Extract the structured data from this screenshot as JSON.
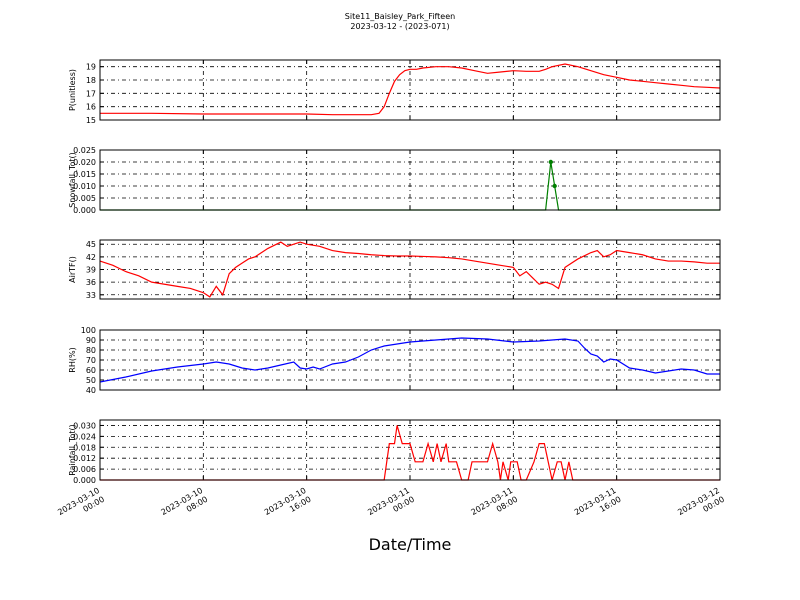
{
  "title": [
    "Site11_Baisley_Park_Fifteen",
    "2023-03-12 - (2023-071)"
  ],
  "xlabel": "Date/Time",
  "xtick_labels": [
    [
      "2023-03-10",
      "00:00"
    ],
    [
      "2023-03-10",
      "08:00"
    ],
    [
      "2023-03-10",
      "16:00"
    ],
    [
      "2023-03-11",
      "00:00"
    ],
    [
      "2023-03-11",
      "08:00"
    ],
    [
      "2023-03-11",
      "16:00"
    ],
    [
      "2023-03-12",
      "00:00"
    ]
  ],
  "chart_data": [
    {
      "type": "line",
      "ylabel": "P(unitless)",
      "color": "#ff0000",
      "xlim": [
        0,
        48
      ],
      "ylim": [
        15,
        19.5
      ],
      "yticks": [
        15,
        16,
        17,
        18,
        19
      ],
      "x": [
        0,
        4,
        8,
        12,
        16,
        18,
        20,
        21,
        21.6,
        22,
        22.4,
        22.8,
        23.2,
        23.6,
        24,
        24.5,
        25,
        26,
        27,
        28,
        29,
        30,
        31,
        32,
        33,
        34,
        34.5,
        35,
        36,
        37,
        38,
        39,
        40,
        41,
        42,
        43,
        44,
        45,
        46,
        47,
        48
      ],
      "y": [
        15.5,
        15.5,
        15.45,
        15.45,
        15.45,
        15.4,
        15.4,
        15.4,
        15.5,
        16.0,
        17.0,
        17.9,
        18.4,
        18.7,
        18.8,
        18.8,
        18.9,
        19.0,
        19.0,
        18.9,
        18.7,
        18.5,
        18.6,
        18.7,
        18.65,
        18.65,
        18.8,
        19.0,
        19.2,
        19.0,
        18.7,
        18.4,
        18.2,
        18.0,
        17.9,
        17.8,
        17.7,
        17.6,
        17.5,
        17.45,
        17.4
      ]
    },
    {
      "type": "line",
      "ylabel": "Snowfall_Tot()",
      "color": "#008000",
      "xlim": [
        0,
        48
      ],
      "ylim": [
        0,
        0.025
      ],
      "yticks": [
        0.0,
        0.005,
        0.01,
        0.015,
        0.02,
        0.025
      ],
      "x": [
        0,
        34.5,
        34.9,
        35.2,
        35.5,
        48
      ],
      "y": [
        0,
        0,
        0.02,
        0.01,
        0,
        0
      ],
      "markers": [
        [
          34.9,
          0.02
        ],
        [
          35.2,
          0.01
        ]
      ]
    },
    {
      "type": "line",
      "ylabel": "AirTF()",
      "color": "#ff0000",
      "xlim": [
        0,
        48
      ],
      "ylim": [
        32,
        46
      ],
      "yticks": [
        33,
        36,
        39,
        42,
        45
      ],
      "x": [
        0,
        1,
        2,
        3,
        4,
        5,
        6,
        7,
        8,
        8.5,
        9,
        9.5,
        10,
        10.5,
        11,
        11.5,
        12,
        13,
        14,
        14.5,
        15,
        15.5,
        16,
        17,
        18,
        19,
        20,
        21,
        22,
        23,
        24,
        25,
        26,
        27,
        28,
        29,
        30,
        31,
        32,
        32.5,
        33,
        33.5,
        34,
        34.5,
        35,
        35.5,
        36,
        37,
        38,
        38.5,
        39,
        39.5,
        40,
        41,
        42,
        43,
        44,
        45,
        46,
        47,
        48
      ],
      "y": [
        41,
        40,
        38.5,
        37.5,
        36,
        35.5,
        35,
        34.5,
        33.5,
        32.5,
        35,
        33,
        38,
        39.5,
        40.5,
        41.5,
        42,
        44,
        45.5,
        44.5,
        45,
        45.5,
        45,
        44.5,
        43.5,
        43,
        42.8,
        42.5,
        42.3,
        42.2,
        42.2,
        42.1,
        42,
        41.8,
        41.5,
        41,
        40.5,
        40,
        39.5,
        37.5,
        38.5,
        37,
        35.5,
        36,
        35.5,
        34.5,
        39.5,
        41.5,
        43,
        43.5,
        42,
        42.5,
        43.5,
        43,
        42.5,
        41.5,
        41,
        41,
        40.8,
        40.5,
        40.5
      ]
    },
    {
      "type": "line",
      "ylabel": "RH(%)",
      "color": "#0000ff",
      "xlim": [
        0,
        48
      ],
      "ylim": [
        40,
        100
      ],
      "yticks": [
        40,
        50,
        60,
        70,
        80,
        90,
        100
      ],
      "x": [
        0,
        2,
        4,
        6,
        8,
        9,
        10,
        11,
        12,
        13,
        14,
        15,
        15.5,
        16,
        16.5,
        17,
        18,
        19,
        20,
        21,
        22,
        24,
        26,
        28,
        30,
        32,
        34,
        35,
        36,
        37,
        37.5,
        38,
        38.5,
        39,
        39.5,
        40,
        41,
        42,
        43,
        44,
        45,
        46,
        47,
        48
      ],
      "y": [
        48,
        53,
        59,
        63,
        66,
        68,
        66,
        62,
        60,
        62,
        65,
        68,
        62,
        61,
        63,
        61,
        66,
        68,
        73,
        80,
        84,
        88,
        90,
        92,
        91,
        88,
        89,
        90,
        91,
        89,
        82,
        76,
        74,
        68,
        71,
        70,
        62,
        60,
        57,
        59,
        61,
        60,
        56,
        56
      ]
    },
    {
      "type": "line",
      "ylabel": "Rainfall_Tot()",
      "color": "#ff0000",
      "xlim": [
        0,
        48
      ],
      "ylim": [
        0,
        0.033
      ],
      "yticks": [
        0.0,
        0.006,
        0.012,
        0.018,
        0.024,
        0.03
      ],
      "x": [
        0,
        22.0,
        22.4,
        22.8,
        23.0,
        23.4,
        24.0,
        24.4,
        25.0,
        25.4,
        25.8,
        26.1,
        26.4,
        26.8,
        27.0,
        27.3,
        27.6,
        28.0,
        28.5,
        28.8,
        29.2,
        30.0,
        30.4,
        30.8,
        31.0,
        31.2,
        31.6,
        31.8,
        32.0,
        32.3,
        32.6,
        33.0,
        33.6,
        34.0,
        34.4,
        34.7,
        35.0,
        35.4,
        35.7,
        36.0,
        36.3,
        36.6,
        48
      ],
      "y": [
        0,
        0,
        0.02,
        0.02,
        0.03,
        0.02,
        0.02,
        0.01,
        0.01,
        0.02,
        0.01,
        0.02,
        0.01,
        0.02,
        0.01,
        0.01,
        0.01,
        0,
        0,
        0.01,
        0.01,
        0.01,
        0.02,
        0.01,
        0,
        0.01,
        0,
        0.01,
        0.01,
        0.01,
        0,
        0,
        0.01,
        0.02,
        0.02,
        0.01,
        0,
        0.01,
        0.01,
        0,
        0.01,
        0,
        0
      ]
    }
  ]
}
